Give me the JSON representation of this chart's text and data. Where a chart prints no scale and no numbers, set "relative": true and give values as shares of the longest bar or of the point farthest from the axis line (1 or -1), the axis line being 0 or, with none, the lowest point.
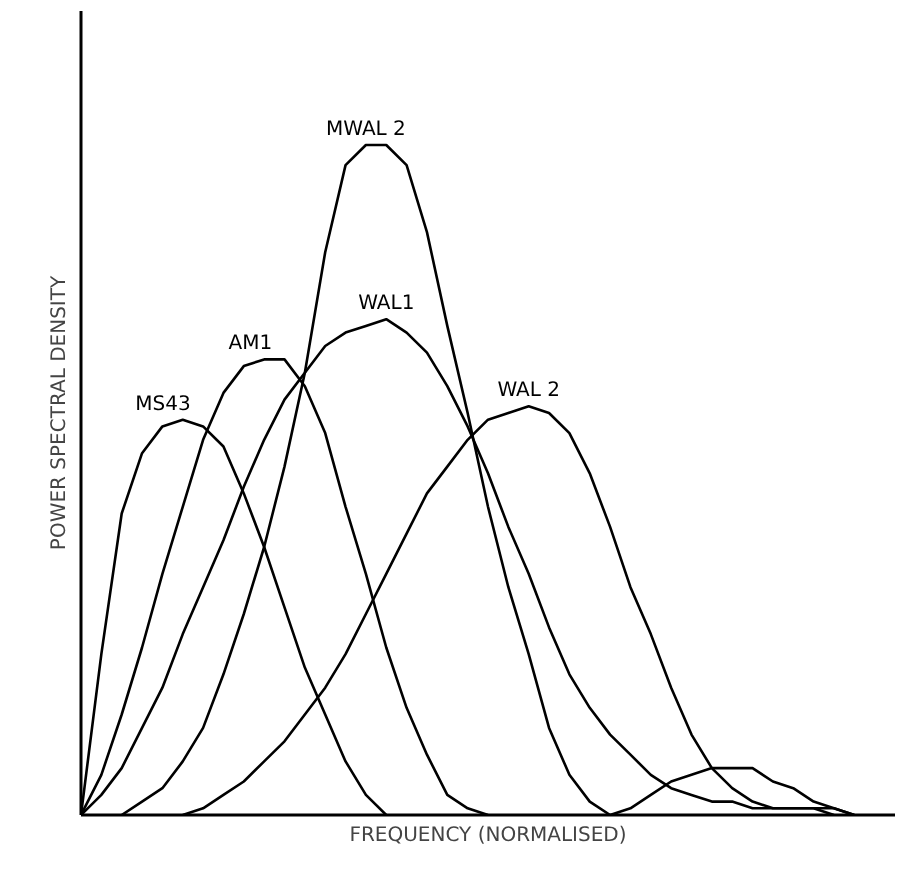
{
  "chart_data": {
    "type": "line",
    "relative": true,
    "xlabel": "FREQUENCY (NORMALISED)",
    "ylabel": "POWER SPECTRAL DENSITY",
    "marker": "none",
    "line_style": "solid",
    "categories": [
      null,
      null,
      null,
      null,
      null,
      null,
      null,
      null,
      null,
      null,
      null,
      null,
      null,
      null,
      null,
      null,
      null,
      null,
      null,
      null,
      null,
      null,
      null,
      null,
      null,
      null,
      null,
      null,
      null,
      null,
      null,
      null,
      null,
      null,
      null,
      null,
      null,
      null,
      null,
      null
    ],
    "series": [
      {
        "name": "MS43",
        "color": "#000000",
        "values": [
          0,
          0.24,
          0.45,
          0.54,
          0.58,
          0.59,
          0.58,
          0.55,
          0.48,
          0.4,
          0.31,
          0.22,
          0.15,
          0.08,
          0.03,
          0,
          null,
          null,
          null,
          null,
          null,
          null,
          null,
          null,
          null,
          null,
          null,
          null,
          null,
          null,
          null,
          null,
          null,
          null,
          null,
          null,
          null,
          null,
          null,
          null
        ]
      },
      {
        "name": "AM1",
        "color": "#000000",
        "values": [
          0,
          0.06,
          0.15,
          0.25,
          0.36,
          0.46,
          0.56,
          0.63,
          0.67,
          0.68,
          0.68,
          0.64,
          0.57,
          0.46,
          0.36,
          0.25,
          0.16,
          0.09,
          0.03,
          0.01,
          0,
          null,
          null,
          null,
          null,
          null,
          null,
          null,
          null,
          null,
          null,
          null,
          null,
          null,
          null,
          null,
          null,
          null,
          null,
          null
        ]
      },
      {
        "name": "MWAL 2",
        "color": "#000000",
        "values": [
          null,
          null,
          0,
          0.02,
          0.04,
          0.08,
          0.13,
          0.21,
          0.3,
          0.4,
          0.52,
          0.66,
          0.84,
          0.97,
          1.0,
          1.0,
          0.97,
          0.87,
          0.73,
          0.6,
          0.46,
          0.34,
          0.24,
          0.13,
          0.06,
          0.02,
          0,
          0.01,
          0.03,
          0.05,
          0.06,
          0.07,
          0.07,
          0.07,
          0.05,
          0.04,
          0.02,
          0.01,
          0,
          null
        ]
      },
      {
        "name": "WAL1",
        "color": "#000000",
        "values": [
          0,
          0.03,
          0.07,
          0.13,
          0.19,
          0.27,
          0.34,
          0.41,
          0.49,
          0.56,
          0.62,
          0.66,
          0.7,
          0.72,
          0.73,
          0.74,
          0.72,
          0.69,
          0.64,
          0.58,
          0.51,
          0.43,
          0.36,
          0.28,
          0.21,
          0.16,
          0.12,
          0.09,
          0.06,
          0.04,
          0.03,
          0.02,
          0.02,
          0.01,
          0.01,
          0.01,
          0.01,
          0,
          null,
          null
        ]
      },
      {
        "name": "WAL 2",
        "color": "#000000",
        "values": [
          null,
          null,
          null,
          null,
          null,
          0,
          0.01,
          0.03,
          0.05,
          0.08,
          0.11,
          0.15,
          0.19,
          0.24,
          0.3,
          0.36,
          0.42,
          0.48,
          0.52,
          0.56,
          0.59,
          0.6,
          0.61,
          0.6,
          0.57,
          0.51,
          0.43,
          0.34,
          0.27,
          0.19,
          0.12,
          0.07,
          0.04,
          0.02,
          0.01,
          0.01,
          0.01,
          0.01,
          0,
          null
        ]
      }
    ]
  }
}
